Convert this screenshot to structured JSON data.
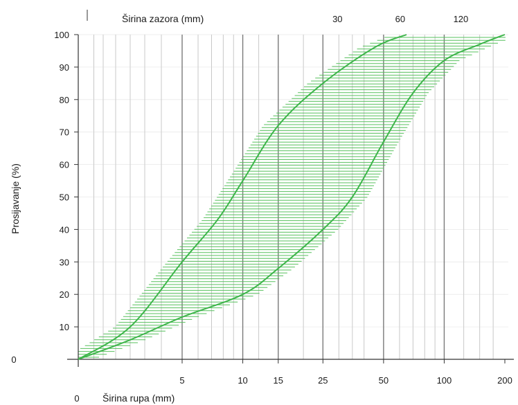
{
  "chart_data": {
    "type": "line",
    "title": "",
    "xlabel": "Širina rupa (mm)",
    "xlabel_top": "Širina zazora (mm)",
    "ylabel": "Prosijavanje (%)",
    "x_scale": "log",
    "x_origin_label": "0",
    "x_ticks_bottom": [
      {
        "value": 5,
        "label": "5"
      },
      {
        "value": 10,
        "label": "10"
      },
      {
        "value": 15,
        "label": "15"
      },
      {
        "value": 25,
        "label": "25"
      },
      {
        "value": 50,
        "label": "50"
      },
      {
        "value": 100,
        "label": "100"
      },
      {
        "value": 200,
        "label": "200"
      }
    ],
    "x_ticks_top": [
      {
        "value": 25,
        "label": "30"
      },
      {
        "value": 50,
        "label": "60"
      },
      {
        "value": 100,
        "label": "120"
      }
    ],
    "ylim": [
      0,
      100
    ],
    "y_ticks": [
      "0",
      "10",
      "20",
      "30",
      "40",
      "50",
      "60",
      "70",
      "80",
      "90",
      "100"
    ],
    "grid": true,
    "series": [
      {
        "x": [
          0,
          2.5,
          5,
          7.5,
          10,
          15,
          25,
          45,
          65
        ],
        "y": [
          0,
          10,
          30,
          43,
          55,
          72,
          85,
          96,
          100
        ]
      },
      {
        "x": [
          0,
          2.5,
          5,
          10,
          15,
          25,
          35,
          50,
          70,
          100,
          150,
          200
        ],
        "y": [
          0,
          6,
          13,
          20,
          28,
          40,
          50,
          67,
          82,
          92,
          97,
          100
        ]
      }
    ],
    "band_hatching": true,
    "colors": {
      "curve": "#3db54a",
      "hatch": "#57c05d",
      "grid_major": "#7a7a7a",
      "grid_minor": "#c8c8c8",
      "axis": "#333333"
    }
  }
}
